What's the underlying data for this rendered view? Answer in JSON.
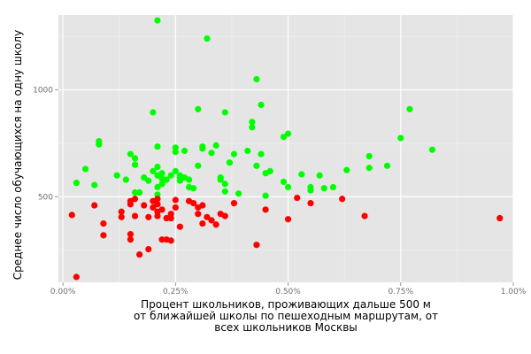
{
  "chart_data": {
    "type": "scatter",
    "title": "",
    "xlabel": [
      "Процент школьников, проживающих дальше 500 м",
      "от ближайшей школы по пешеходным маршрутам, от",
      "всех школьников Москвы"
    ],
    "ylabel": "Среднее число обучающихся на одну школу",
    "xlim": [
      -0.0001,
      0.01
    ],
    "ylim": [
      100,
      1350
    ],
    "x_ticks": [
      {
        "value": 0.0,
        "label": "0.00%"
      },
      {
        "value": 0.0025,
        "label": "0.25%"
      },
      {
        "value": 0.005,
        "label": "0.50%"
      },
      {
        "value": 0.0075,
        "label": "0.75%"
      },
      {
        "value": 0.01,
        "label": "1.00%"
      }
    ],
    "y_ticks": [
      {
        "value": 500,
        "label": "500"
      },
      {
        "value": 1000,
        "label": "1000"
      }
    ],
    "grid": true,
    "background": "#e5e5e5",
    "series": [
      {
        "color": "#00ff00",
        "points": [
          [
            0.0003,
            565
          ],
          [
            0.0005,
            630
          ],
          [
            0.0007,
            555
          ],
          [
            0.0008,
            760
          ],
          [
            0.0008,
            745
          ],
          [
            0.0012,
            600
          ],
          [
            0.0014,
            580
          ],
          [
            0.0015,
            700
          ],
          [
            0.0016,
            650
          ],
          [
            0.0016,
            680
          ],
          [
            0.0016,
            520
          ],
          [
            0.0017,
            520
          ],
          [
            0.0018,
            590
          ],
          [
            0.0019,
            575
          ],
          [
            0.002,
            895
          ],
          [
            0.002,
            620
          ],
          [
            0.0021,
            1325
          ],
          [
            0.0021,
            640
          ],
          [
            0.0021,
            735
          ],
          [
            0.0021,
            600
          ],
          [
            0.0021,
            545
          ],
          [
            0.0021,
            510
          ],
          [
            0.0022,
            585
          ],
          [
            0.0022,
            560
          ],
          [
            0.0022,
            610
          ],
          [
            0.0023,
            580
          ],
          [
            0.0024,
            600
          ],
          [
            0.0025,
            620
          ],
          [
            0.0025,
            730
          ],
          [
            0.0025,
            710
          ],
          [
            0.0026,
            600
          ],
          [
            0.0026,
            590
          ],
          [
            0.0026,
            575
          ],
          [
            0.0027,
            590
          ],
          [
            0.0028,
            580
          ],
          [
            0.0027,
            715
          ],
          [
            0.0028,
            545
          ],
          [
            0.0029,
            540
          ],
          [
            0.003,
            645
          ],
          [
            0.003,
            910
          ],
          [
            0.0031,
            735
          ],
          [
            0.0031,
            725
          ],
          [
            0.0032,
            1240
          ],
          [
            0.0033,
            705
          ],
          [
            0.0034,
            740
          ],
          [
            0.0035,
            590
          ],
          [
            0.0035,
            580
          ],
          [
            0.0036,
            560
          ],
          [
            0.0036,
            525
          ],
          [
            0.0036,
            895
          ],
          [
            0.0037,
            660
          ],
          [
            0.0038,
            700
          ],
          [
            0.0039,
            515
          ],
          [
            0.0041,
            715
          ],
          [
            0.0042,
            850
          ],
          [
            0.0042,
            825
          ],
          [
            0.0043,
            645
          ],
          [
            0.0043,
            1050
          ],
          [
            0.0044,
            930
          ],
          [
            0.0044,
            700
          ],
          [
            0.0045,
            505
          ],
          [
            0.0045,
            610
          ],
          [
            0.0046,
            620
          ],
          [
            0.0049,
            570
          ],
          [
            0.0049,
            780
          ],
          [
            0.005,
            795
          ],
          [
            0.005,
            545
          ],
          [
            0.0053,
            605
          ],
          [
            0.0055,
            545
          ],
          [
            0.0055,
            530
          ],
          [
            0.0057,
            600
          ],
          [
            0.0058,
            540
          ],
          [
            0.006,
            545
          ],
          [
            0.0063,
            625
          ],
          [
            0.0068,
            690
          ],
          [
            0.0068,
            635
          ],
          [
            0.0072,
            645
          ],
          [
            0.0075,
            775
          ],
          [
            0.0077,
            910
          ],
          [
            0.0082,
            720
          ]
        ]
      },
      {
        "color": "#ff0000",
        "points": [
          [
            0.0002,
            415
          ],
          [
            0.0003,
            125
          ],
          [
            0.0007,
            460
          ],
          [
            0.0009,
            375
          ],
          [
            0.0009,
            320
          ],
          [
            0.0013,
            430
          ],
          [
            0.0013,
            405
          ],
          [
            0.0015,
            325
          ],
          [
            0.0015,
            300
          ],
          [
            0.0015,
            465
          ],
          [
            0.0015,
            480
          ],
          [
            0.0016,
            490
          ],
          [
            0.0016,
            410
          ],
          [
            0.0017,
            230
          ],
          [
            0.0018,
            460
          ],
          [
            0.0019,
            255
          ],
          [
            0.0019,
            405
          ],
          [
            0.002,
            480
          ],
          [
            0.002,
            450
          ],
          [
            0.0021,
            490
          ],
          [
            0.0021,
            465
          ],
          [
            0.0021,
            430
          ],
          [
            0.0021,
            410
          ],
          [
            0.0022,
            440
          ],
          [
            0.0022,
            300
          ],
          [
            0.0023,
            300
          ],
          [
            0.0023,
            400
          ],
          [
            0.0024,
            420
          ],
          [
            0.0024,
            400
          ],
          [
            0.0024,
            295
          ],
          [
            0.0025,
            485
          ],
          [
            0.0025,
            450
          ],
          [
            0.0026,
            360
          ],
          [
            0.0028,
            480
          ],
          [
            0.0029,
            470
          ],
          [
            0.003,
            450
          ],
          [
            0.003,
            420
          ],
          [
            0.0031,
            460
          ],
          [
            0.0031,
            375
          ],
          [
            0.0032,
            405
          ],
          [
            0.0033,
            390
          ],
          [
            0.0034,
            370
          ],
          [
            0.0035,
            420
          ],
          [
            0.0036,
            410
          ],
          [
            0.0038,
            470
          ],
          [
            0.0043,
            275
          ],
          [
            0.0045,
            440
          ],
          [
            0.005,
            395
          ],
          [
            0.0052,
            495
          ],
          [
            0.0055,
            470
          ],
          [
            0.0062,
            490
          ],
          [
            0.0067,
            410
          ],
          [
            0.0097,
            400
          ]
        ]
      }
    ]
  }
}
